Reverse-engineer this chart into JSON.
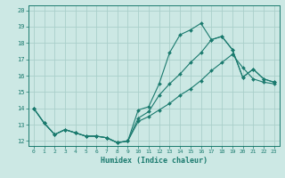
{
  "xlabel": "Humidex (Indice chaleur)",
  "bg_color": "#cce8e4",
  "grid_color": "#aacfca",
  "line_color": "#1a7a6e",
  "xlim": [
    -0.5,
    23.5
  ],
  "ylim": [
    11.7,
    20.3
  ],
  "xticks": [
    0,
    1,
    2,
    3,
    4,
    5,
    6,
    7,
    8,
    9,
    10,
    11,
    12,
    13,
    14,
    15,
    16,
    17,
    18,
    19,
    20,
    21,
    22,
    23
  ],
  "yticks": [
    12,
    13,
    14,
    15,
    16,
    17,
    18,
    19,
    20
  ],
  "line1_x": [
    0,
    1,
    2,
    3,
    4,
    5,
    6,
    7,
    8,
    9,
    10,
    11,
    12,
    13,
    14,
    15,
    16,
    17,
    18,
    19,
    20,
    21,
    22,
    23
  ],
  "line1_y": [
    14.0,
    13.1,
    12.4,
    12.7,
    12.5,
    12.3,
    12.3,
    12.2,
    11.9,
    12.0,
    13.9,
    14.1,
    15.5,
    17.4,
    18.5,
    18.8,
    19.2,
    18.2,
    18.4,
    17.6,
    15.9,
    16.4,
    15.8,
    15.6
  ],
  "line2_x": [
    0,
    1,
    2,
    3,
    4,
    5,
    6,
    7,
    8,
    9,
    10,
    11,
    12,
    13,
    14,
    15,
    16,
    17,
    18,
    19,
    20,
    21,
    22,
    23
  ],
  "line2_y": [
    14.0,
    13.1,
    12.4,
    12.7,
    12.5,
    12.3,
    12.3,
    12.2,
    11.9,
    12.0,
    13.4,
    13.8,
    14.8,
    15.5,
    16.1,
    16.8,
    17.4,
    18.2,
    18.4,
    17.6,
    15.9,
    16.4,
    15.8,
    15.6
  ],
  "line3_x": [
    0,
    1,
    2,
    3,
    4,
    5,
    6,
    7,
    8,
    9,
    10,
    11,
    12,
    13,
    14,
    15,
    16,
    17,
    18,
    19,
    20,
    21,
    22,
    23
  ],
  "line3_y": [
    14.0,
    13.1,
    12.4,
    12.7,
    12.5,
    12.3,
    12.3,
    12.2,
    11.9,
    12.0,
    13.2,
    13.5,
    13.9,
    14.3,
    14.8,
    15.2,
    15.7,
    16.3,
    16.8,
    17.3,
    16.5,
    15.8,
    15.6,
    15.5
  ]
}
